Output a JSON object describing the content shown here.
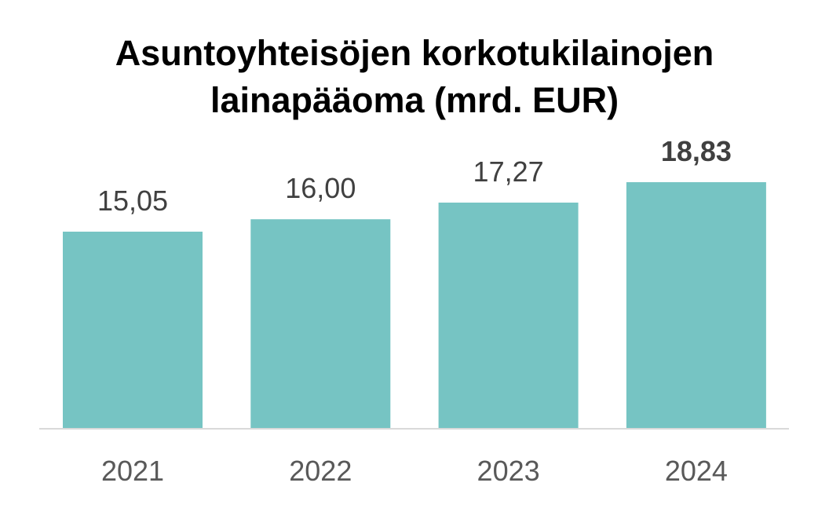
{
  "chart_data": {
    "type": "bar",
    "title_lines": [
      "Asuntoyhteisöjen korkotukilainojen",
      "lainapääoma (mrd. EUR)"
    ],
    "categories": [
      "2021",
      "2022",
      "2023",
      "2024"
    ],
    "values": [
      15.05,
      16.0,
      17.27,
      18.83
    ],
    "value_labels": [
      "15,05",
      "16,00",
      "17,27",
      "18,83"
    ],
    "highlight_index": 3,
    "bar_color": "#76C4C3",
    "label_color": "#404040",
    "axis_color": "#D9D9D9",
    "ylim": [
      0,
      18.83
    ],
    "grid": false,
    "legend": "none",
    "xlabel": "",
    "ylabel": ""
  }
}
